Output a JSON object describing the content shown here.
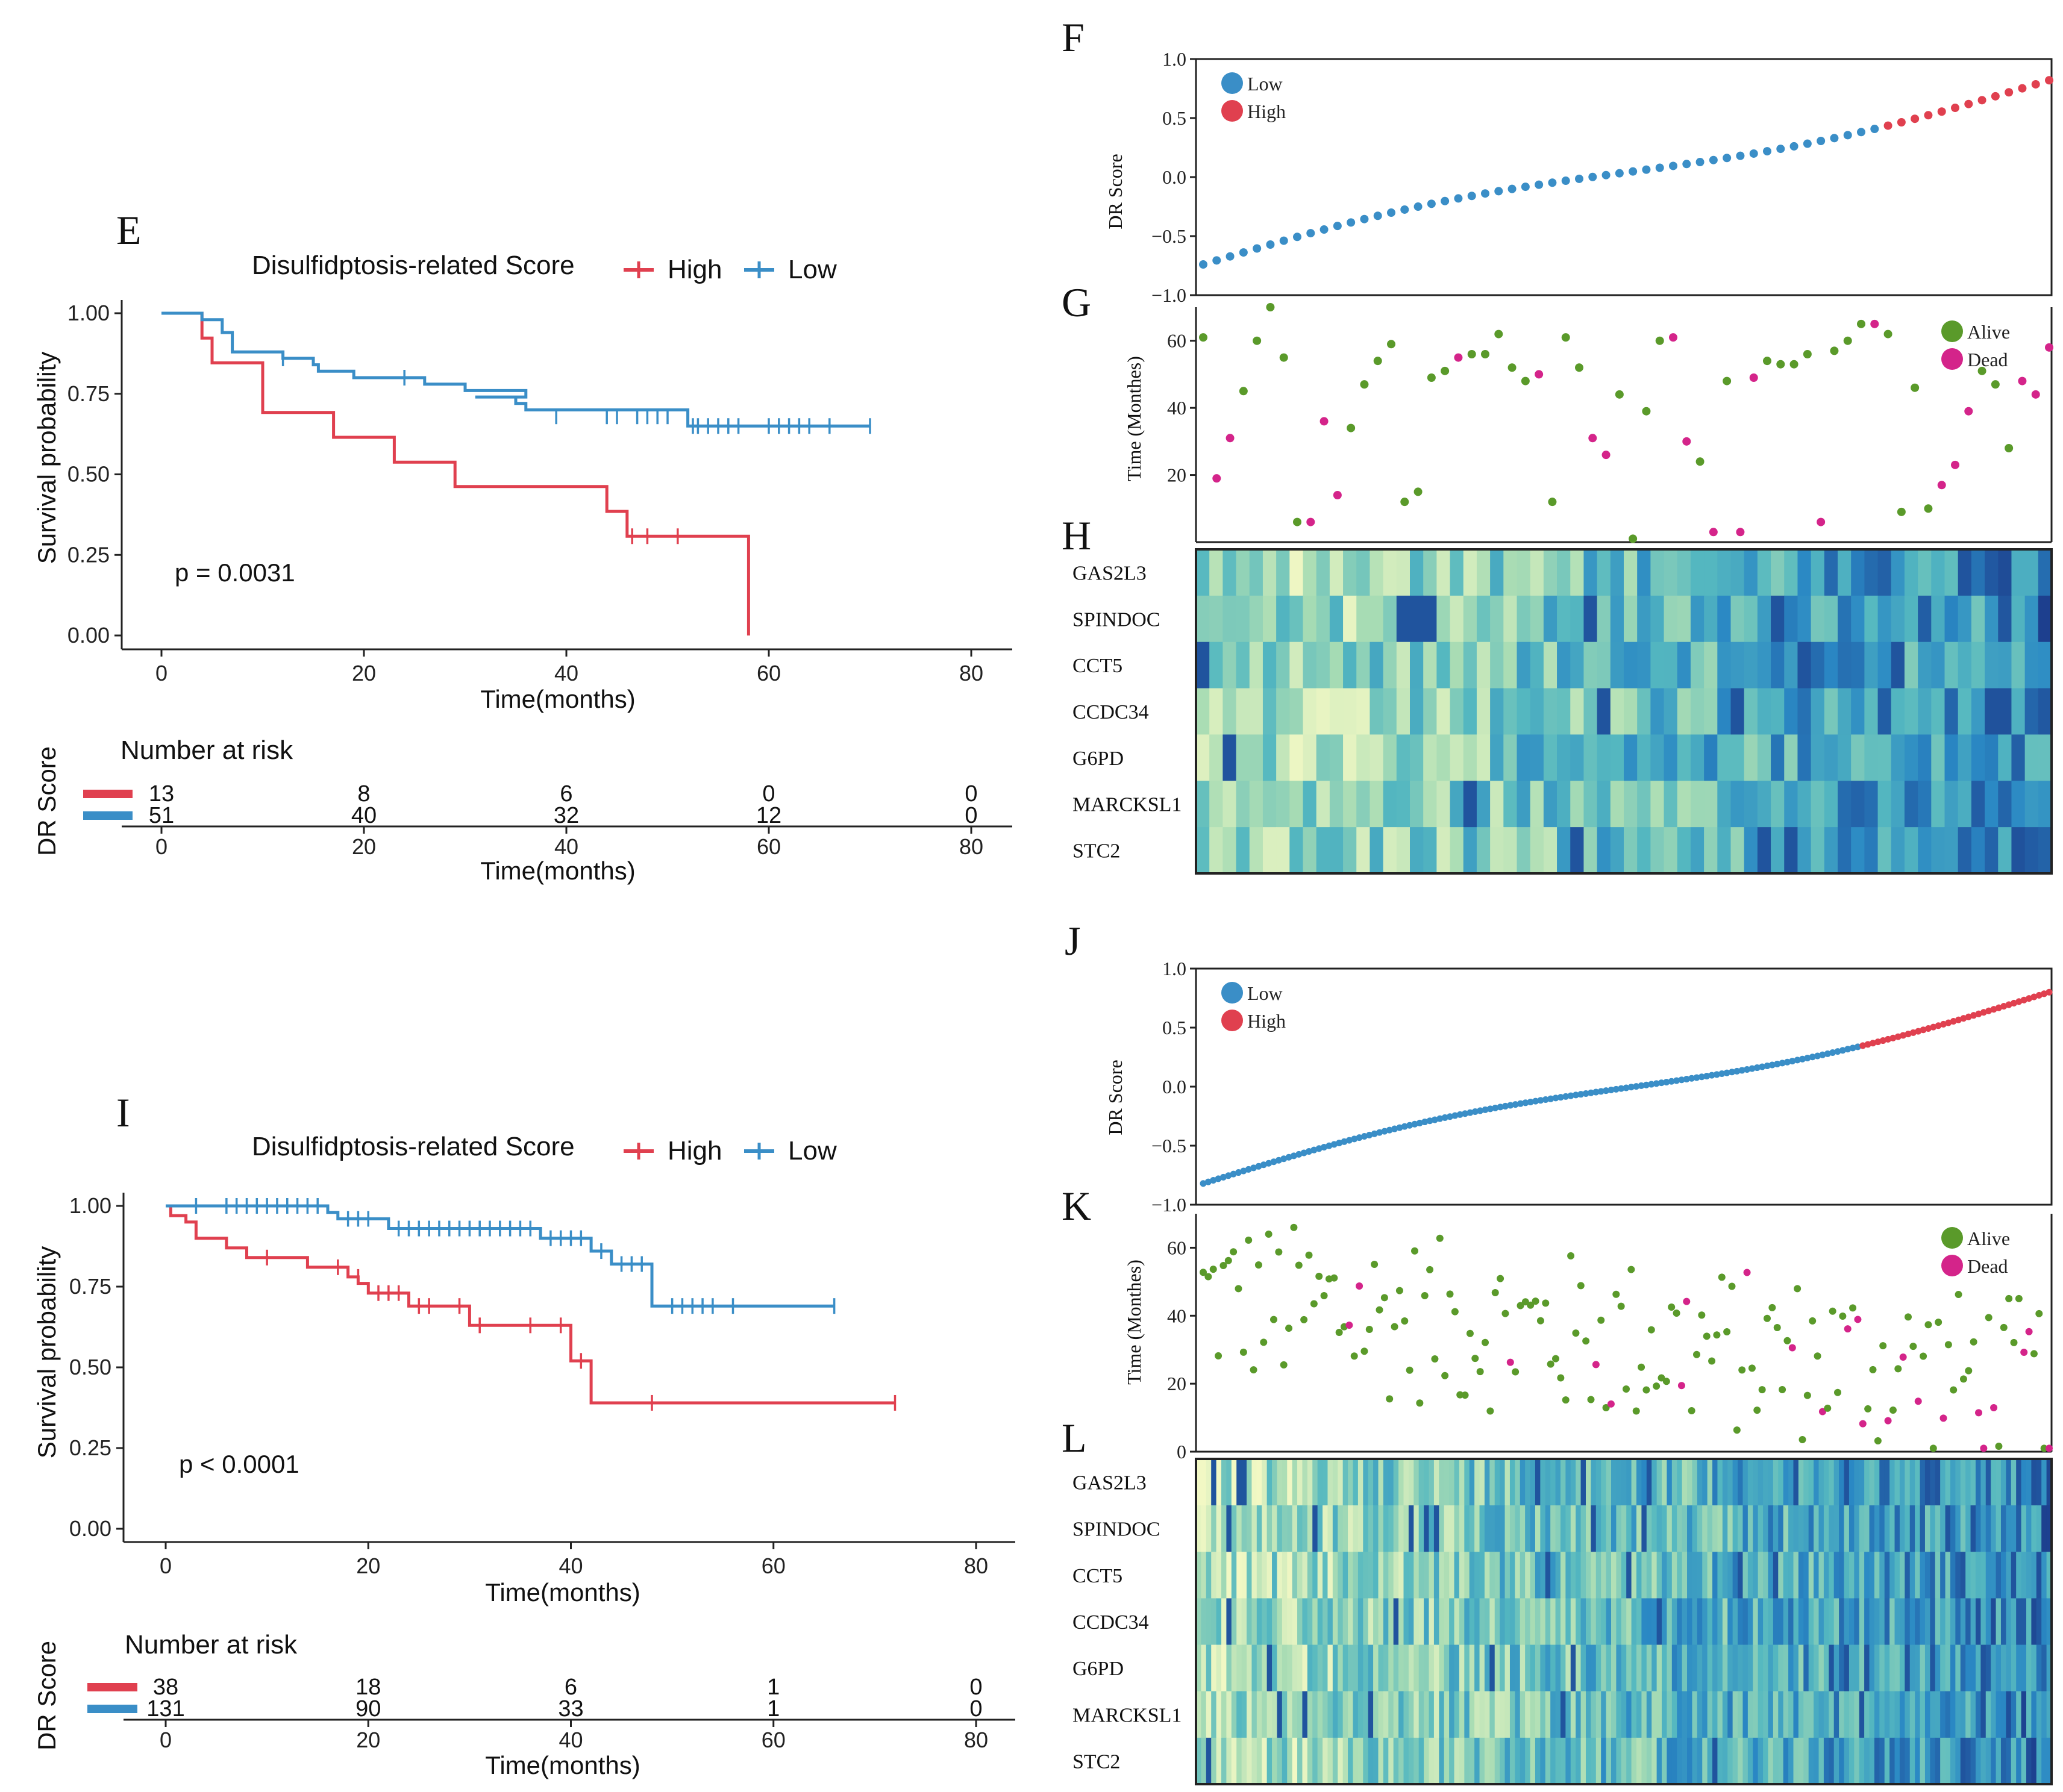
{
  "chart_data": [
    {
      "panel": "E",
      "type": "line",
      "subtype": "kaplan-meier",
      "legend_title": "Disulfidptosis-related Score",
      "xlabel": "Time(months)",
      "ylabel": "Survival probability",
      "xlim": [
        0,
        80
      ],
      "ylim": [
        0,
        1
      ],
      "xticks": [
        "0",
        "20",
        "40",
        "60",
        "80"
      ],
      "yticks": [
        "0.00",
        "0.25",
        "0.50",
        "0.75",
        "1.00"
      ],
      "pvalue": "p = 0.0031",
      "series": [
        {
          "name": "High",
          "color": "#e0404f",
          "steps": [
            [
              0,
              1
            ],
            [
              4,
              1
            ],
            [
              4,
              0.923
            ],
            [
              5,
              0.923
            ],
            [
              5,
              0.846
            ],
            [
              10,
              0.846
            ],
            [
              10,
              0.692
            ],
            [
              17,
              0.692
            ],
            [
              17,
              0.615
            ],
            [
              23,
              0.615
            ],
            [
              23,
              0.538
            ],
            [
              29,
              0.538
            ],
            [
              29,
              0.462
            ],
            [
              44,
              0.462
            ],
            [
              44,
              0.385
            ],
            [
              46,
              0.385
            ],
            [
              46,
              0.308
            ],
            [
              58,
              0.308
            ],
            [
              58,
              0
            ]
          ],
          "censors": [
            [
              46.5,
              0.308
            ],
            [
              48,
              0.308
            ],
            [
              51,
              0.308
            ]
          ]
        },
        {
          "name": "Low",
          "color": "#3a8ec7",
          "steps": [
            [
              0,
              1
            ],
            [
              4,
              1
            ],
            [
              4,
              0.98
            ],
            [
              6,
              0.98
            ],
            [
              6,
              0.94
            ],
            [
              7,
              0.94
            ],
            [
              7,
              0.88
            ],
            [
              12,
              0.88
            ],
            [
              12,
              0.86
            ],
            [
              15,
              0.86
            ],
            [
              15,
              0.84
            ],
            [
              15.5,
              0.84
            ],
            [
              15.5,
              0.82
            ],
            [
              19,
              0.82
            ],
            [
              19,
              0.8
            ],
            [
              26,
              0.8
            ],
            [
              26,
              0.78
            ],
            [
              30,
              0.78
            ],
            [
              30,
              0.76
            ],
            [
              36,
              0.76
            ],
            [
              36,
              0.74
            ],
            [
              31,
              0.74
            ],
            [
              35,
              0.74
            ],
            [
              35,
              0.72
            ],
            [
              36,
              0.72
            ],
            [
              36,
              0.7
            ],
            [
              52,
              0.7
            ],
            [
              52,
              0.65
            ],
            [
              70,
              0.65
            ]
          ],
          "censors": [
            [
              12,
              0.86
            ],
            [
              24,
              0.8
            ],
            [
              39,
              0.68
            ],
            [
              44,
              0.68
            ],
            [
              45,
              0.68
            ],
            [
              47,
              0.68
            ],
            [
              48,
              0.68
            ],
            [
              49,
              0.68
            ],
            [
              50,
              0.68
            ],
            [
              52.5,
              0.65
            ],
            [
              53,
              0.65
            ],
            [
              54,
              0.65
            ],
            [
              55,
              0.65
            ],
            [
              56,
              0.65
            ],
            [
              57,
              0.65
            ],
            [
              60,
              0.65
            ],
            [
              61,
              0.65
            ],
            [
              62,
              0.65
            ],
            [
              63,
              0.65
            ],
            [
              64,
              0.65
            ],
            [
              66,
              0.65
            ],
            [
              70,
              0.65
            ]
          ]
        }
      ],
      "risk_table": {
        "title": "Number at risk",
        "ylabel": "DR Score",
        "xlabel": "Time(months)",
        "times": [
          "0",
          "20",
          "40",
          "60",
          "80"
        ],
        "rows": [
          {
            "name": "High",
            "color": "#e0404f",
            "counts": [
              "13",
              "8",
              "6",
              "0",
              "0"
            ]
          },
          {
            "name": "Low",
            "color": "#3a8ec7",
            "counts": [
              "51",
              "40",
              "32",
              "12",
              "0"
            ]
          }
        ]
      }
    },
    {
      "panel": "I",
      "type": "line",
      "subtype": "kaplan-meier",
      "legend_title": "Disulfidptosis-related Score",
      "xlabel": "Time(months)",
      "ylabel": "Survival probability",
      "xlim": [
        0,
        80
      ],
      "ylim": [
        0,
        1
      ],
      "xticks": [
        "0",
        "20",
        "40",
        "60",
        "80"
      ],
      "yticks": [
        "0.00",
        "0.25",
        "0.50",
        "0.75",
        "1.00"
      ],
      "pvalue": "p < 0.0001",
      "series": [
        {
          "name": "High",
          "color": "#e0404f",
          "steps": [
            [
              0,
              1
            ],
            [
              0.5,
              1
            ],
            [
              0.5,
              0.97
            ],
            [
              2,
              0.97
            ],
            [
              2,
              0.95
            ],
            [
              3,
              0.95
            ],
            [
              3,
              0.9
            ],
            [
              6,
              0.9
            ],
            [
              6,
              0.87
            ],
            [
              8,
              0.87
            ],
            [
              8,
              0.84
            ],
            [
              14,
              0.84
            ],
            [
              14,
              0.81
            ],
            [
              18,
              0.81
            ],
            [
              18,
              0.78
            ],
            [
              19,
              0.78
            ],
            [
              19,
              0.76
            ],
            [
              20,
              0.76
            ],
            [
              20,
              0.73
            ],
            [
              24,
              0.73
            ],
            [
              24,
              0.69
            ],
            [
              30,
              0.69
            ],
            [
              30,
              0.63
            ],
            [
              40,
              0.63
            ],
            [
              40,
              0.52
            ],
            [
              42,
              0.52
            ],
            [
              42,
              0.39
            ],
            [
              72,
              0.39
            ]
          ],
          "censors": [
            [
              10,
              0.84
            ],
            [
              17,
              0.81
            ],
            [
              19,
              0.78
            ],
            [
              21,
              0.73
            ],
            [
              22,
              0.73
            ],
            [
              23,
              0.73
            ],
            [
              25,
              0.69
            ],
            [
              26,
              0.69
            ],
            [
              29,
              0.69
            ],
            [
              31,
              0.63
            ],
            [
              36,
              0.63
            ],
            [
              39,
              0.63
            ],
            [
              41,
              0.52
            ],
            [
              48,
              0.39
            ],
            [
              72,
              0.39
            ]
          ]
        },
        {
          "name": "Low",
          "color": "#3a8ec7",
          "steps": [
            [
              0,
              1
            ],
            [
              16,
              1
            ],
            [
              16,
              0.98
            ],
            [
              17,
              0.98
            ],
            [
              17,
              0.96
            ],
            [
              22,
              0.96
            ],
            [
              22,
              0.93
            ],
            [
              37,
              0.93
            ],
            [
              37,
              0.9
            ],
            [
              42,
              0.9
            ],
            [
              42,
              0.86
            ],
            [
              44,
              0.86
            ],
            [
              44,
              0.82
            ],
            [
              48,
              0.82
            ],
            [
              48,
              0.69
            ],
            [
              66,
              0.69
            ]
          ],
          "censors": [
            [
              3,
              1
            ],
            [
              6,
              1
            ],
            [
              7,
              1
            ],
            [
              8,
              1
            ],
            [
              9,
              1
            ],
            [
              10,
              1
            ],
            [
              11,
              1
            ],
            [
              12,
              1
            ],
            [
              13,
              1
            ],
            [
              14,
              1
            ],
            [
              15,
              1
            ],
            [
              18,
              0.96
            ],
            [
              19,
              0.96
            ],
            [
              20,
              0.96
            ],
            [
              23,
              0.93
            ],
            [
              24,
              0.93
            ],
            [
              25,
              0.93
            ],
            [
              26,
              0.93
            ],
            [
              27,
              0.93
            ],
            [
              28,
              0.93
            ],
            [
              29,
              0.93
            ],
            [
              30,
              0.93
            ],
            [
              31,
              0.93
            ],
            [
              32,
              0.93
            ],
            [
              33,
              0.93
            ],
            [
              34,
              0.93
            ],
            [
              35,
              0.93
            ],
            [
              36,
              0.93
            ],
            [
              38,
              0.9
            ],
            [
              39,
              0.9
            ],
            [
              40,
              0.9
            ],
            [
              41,
              0.9
            ],
            [
              43,
              0.86
            ],
            [
              45,
              0.82
            ],
            [
              46,
              0.82
            ],
            [
              47,
              0.82
            ],
            [
              50,
              0.69
            ],
            [
              51,
              0.69
            ],
            [
              52,
              0.69
            ],
            [
              53,
              0.69
            ],
            [
              54,
              0.69
            ],
            [
              56,
              0.69
            ],
            [
              66,
              0.69
            ]
          ]
        }
      ],
      "risk_table": {
        "title": "Number at risk",
        "ylabel": "DR Score",
        "xlabel": "Time(months)",
        "times": [
          "0",
          "20",
          "40",
          "60",
          "80"
        ],
        "rows": [
          {
            "name": "High",
            "color": "#e0404f",
            "counts": [
              "38",
              "18",
              "6",
              "1",
              "0"
            ]
          },
          {
            "name": "Low",
            "color": "#3a8ec7",
            "counts": [
              "131",
              "90",
              "33",
              "1",
              "0"
            ]
          }
        ]
      }
    },
    {
      "panel": "F",
      "type": "scatter",
      "ylabel": "DR Score",
      "ylim": [
        -1.0,
        1.0
      ],
      "yticks": [
        "1.0",
        "0.5",
        "0.0",
        "−0.5",
        "−1.0"
      ],
      "legend": [
        {
          "name": "Low",
          "color": "#3a8ec7"
        },
        {
          "name": "High",
          "color": "#e0404f"
        }
      ],
      "n": 64,
      "n_low": 51,
      "range": [
        -0.74,
        0.82
      ]
    },
    {
      "panel": "G",
      "type": "scatter",
      "ylabel": "Time (Monthes)",
      "ylim": [
        0,
        70
      ],
      "yticks": [
        "60",
        "40",
        "20"
      ],
      "legend": [
        {
          "name": "Alive",
          "color": "#5a9a2a"
        },
        {
          "name": "Dead",
          "color": "#d4248a"
        }
      ],
      "status": [
        0,
        1,
        1,
        0,
        0,
        0,
        0,
        0,
        1,
        1,
        1,
        0,
        0,
        0,
        0,
        0,
        0,
        0,
        0,
        1,
        0,
        0,
        0,
        0,
        0,
        1,
        0,
        0,
        0,
        1,
        1,
        0,
        0,
        0,
        0,
        1,
        1,
        0,
        1,
        0,
        1,
        1,
        0,
        0,
        0,
        0,
        1,
        0,
        0,
        0,
        1,
        0,
        0,
        0,
        0,
        1,
        1,
        1,
        0,
        0,
        0,
        1,
        1,
        1
      ],
      "time": [
        61,
        19,
        31,
        45,
        60,
        70,
        55,
        6,
        6,
        36,
        14,
        34,
        47,
        54,
        59,
        12,
        15,
        49,
        51,
        55,
        56,
        56,
        62,
        52,
        48,
        50,
        12,
        61,
        52,
        31,
        26,
        44,
        1,
        39,
        60,
        61,
        30,
        24,
        3,
        48,
        3,
        49,
        54,
        53,
        53,
        56,
        6,
        57,
        60,
        65,
        65,
        62,
        9,
        46,
        10,
        17,
        23,
        39,
        51,
        47,
        28,
        48,
        44,
        58
      ]
    },
    {
      "panel": "J",
      "type": "scatter",
      "ylabel": "DR Score",
      "ylim": [
        -1.0,
        1.0
      ],
      "yticks": [
        "1.0",
        "0.5",
        "0.0",
        "−0.5",
        "−1.0"
      ],
      "legend": [
        {
          "name": "Low",
          "color": "#3a8ec7"
        },
        {
          "name": "High",
          "color": "#e0404f"
        }
      ],
      "n": 169,
      "n_low": 131,
      "range": [
        -0.82,
        0.8
      ]
    },
    {
      "panel": "K",
      "type": "scatter",
      "ylabel": "Time (Monthes)",
      "ylim": [
        0,
        70
      ],
      "yticks": [
        "60",
        "40",
        "20",
        "0"
      ],
      "legend": [
        {
          "name": "Alive",
          "color": "#5a9a2a"
        },
        {
          "name": "Dead",
          "color": "#d4248a"
        }
      ],
      "n": 169,
      "dead_fraction": 0.14
    },
    {
      "panel": "H",
      "type": "heatmap",
      "rows": [
        "GAS2L3",
        "SPINDOC",
        "CCT5",
        "CCDC34",
        "G6PD",
        "MARCKSL1",
        "STC2"
      ],
      "n_columns": 64,
      "palette": [
        "#f2f8c4",
        "#a8dcb4",
        "#55b8c0",
        "#2a88c4",
        "#1c3c8c"
      ]
    },
    {
      "panel": "L",
      "type": "heatmap",
      "rows": [
        "GAS2L3",
        "SPINDOC",
        "CCT5",
        "CCDC34",
        "G6PD",
        "MARCKSL1",
        "STC2"
      ],
      "n_columns": 169,
      "palette": [
        "#f2f8c4",
        "#a8dcb4",
        "#55b8c0",
        "#2a88c4",
        "#1c3c8c"
      ]
    }
  ]
}
